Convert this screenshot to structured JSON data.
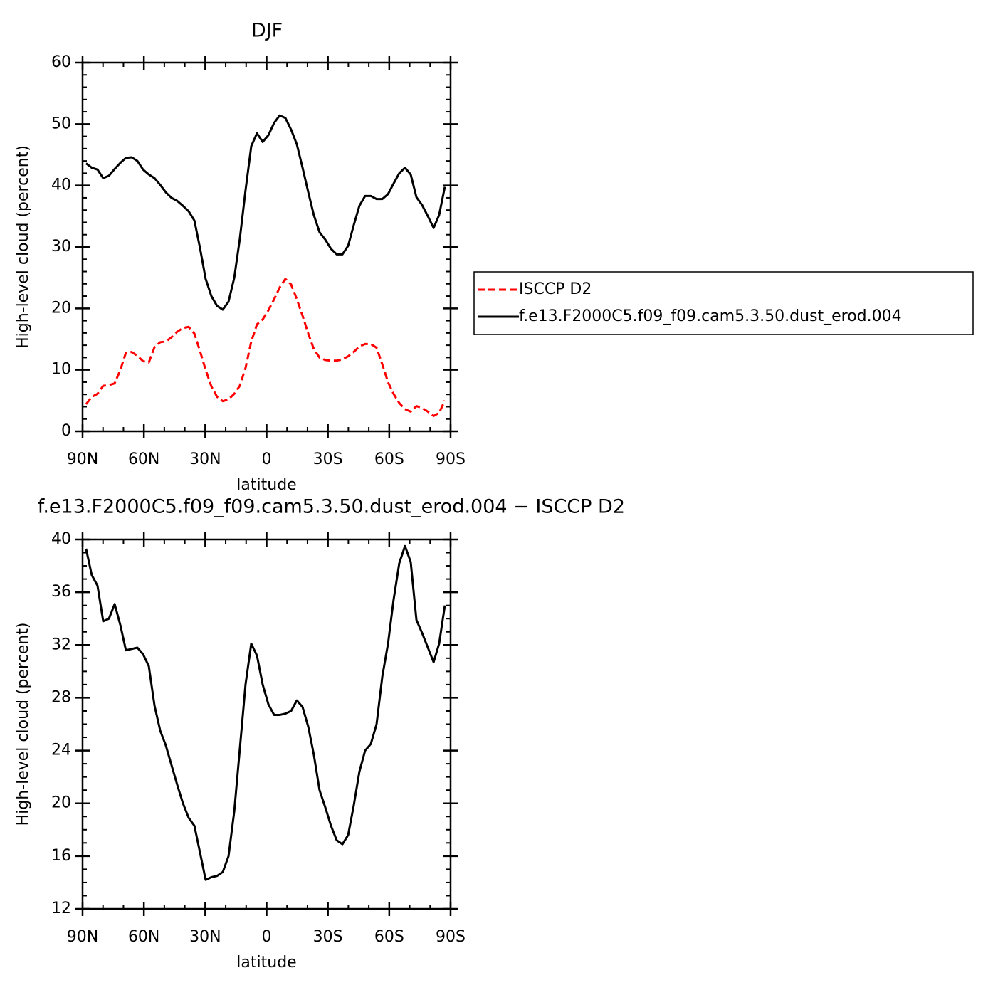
{
  "chart_data": [
    {
      "type": "line",
      "title": "DJF",
      "xlabel": "latitude",
      "ylabel": "High-level cloud (percent)",
      "x": [
        88.3,
        85.5,
        82.7,
        79.9,
        77.1,
        74.3,
        71.5,
        68.8,
        66.0,
        63.2,
        60.4,
        57.6,
        54.8,
        52.0,
        49.3,
        46.5,
        43.7,
        40.9,
        38.1,
        35.3,
        32.6,
        29.8,
        27.0,
        24.2,
        21.4,
        18.6,
        15.8,
        13.1,
        10.3,
        7.5,
        4.7,
        1.9,
        -0.9,
        -3.7,
        -6.4,
        -9.2,
        -12.0,
        -14.8,
        -17.6,
        -20.4,
        -23.1,
        -25.9,
        -28.7,
        -31.5,
        -34.3,
        -37.1,
        -39.9,
        -42.6,
        -45.4,
        -48.2,
        -51.0,
        -53.8,
        -56.6,
        -59.4,
        -62.1,
        -64.9,
        -67.7,
        -70.5,
        -73.3,
        -76.1,
        -78.9,
        -81.7,
        -84.4,
        -87.2
      ],
      "series": [
        {
          "name": "ISCCP D2",
          "color": "#ff0000",
          "style": "dashed",
          "values": [
            4.4,
            5.6,
            6.1,
            7.4,
            7.5,
            7.8,
            10.0,
            12.8,
            12.9,
            12.3,
            11.4,
            11.2,
            13.7,
            14.5,
            14.6,
            15.3,
            16.2,
            16.8,
            17.0,
            15.9,
            13.1,
            10.0,
            7.3,
            5.6,
            4.9,
            5.2,
            6.1,
            7.4,
            10.3,
            14.6,
            17.4,
            18.2,
            19.7,
            21.5,
            23.4,
            24.8,
            23.9,
            21.5,
            18.8,
            15.9,
            13.4,
            12.0,
            11.6,
            11.5,
            11.5,
            11.7,
            12.2,
            12.9,
            13.8,
            14.2,
            14.2,
            13.6,
            10.9,
            8.0,
            6.1,
            4.6,
            3.6,
            3.2,
            4.1,
            3.8,
            3.2,
            2.5,
            3.0,
            5.0
          ]
        },
        {
          "name": "f.e13.F2000C5.f09_f09.cam5.3.50.dust_erod.004",
          "color": "#000000",
          "style": "solid",
          "values": [
            43.6,
            42.9,
            42.6,
            41.2,
            41.6,
            42.7,
            43.7,
            44.5,
            44.6,
            44.0,
            42.6,
            41.8,
            41.2,
            40.1,
            38.9,
            38.0,
            37.5,
            36.7,
            35.8,
            34.3,
            29.9,
            24.8,
            22.0,
            20.4,
            19.8,
            21.1,
            25.0,
            31.3,
            39.2,
            46.4,
            48.5,
            47.1,
            48.2,
            50.2,
            51.4,
            51.0,
            49.1,
            46.7,
            42.9,
            38.9,
            35.2,
            32.4,
            31.2,
            29.7,
            28.8,
            28.8,
            30.2,
            33.5,
            36.7,
            38.3,
            38.3,
            37.8,
            37.8,
            38.6,
            40.3,
            42.0,
            42.9,
            41.8,
            38.1,
            36.8,
            35.0,
            33.1,
            35.2,
            39.8
          ]
        }
      ],
      "xlim": [
        90,
        -90
      ],
      "xticks": [
        {
          "value": 90,
          "label": "90N"
        },
        {
          "value": 60,
          "label": "60N"
        },
        {
          "value": 30,
          "label": "30N"
        },
        0,
        {
          "value": -30,
          "label": "30S"
        },
        {
          "value": -60,
          "label": "60S"
        },
        {
          "value": -90,
          "label": "90S"
        }
      ],
      "ylim": [
        0,
        60
      ],
      "yticks": [
        0,
        10,
        20,
        30,
        40,
        50,
        60
      ],
      "legend": "right"
    },
    {
      "type": "line",
      "title": "f.e13.F2000C5.f09_f09.cam5.3.50.dust_erod.004 − ISCCP D2",
      "xlabel": "latitude",
      "ylabel": "High-level cloud (percent)",
      "x": [
        88.3,
        85.5,
        82.7,
        79.9,
        77.1,
        74.3,
        71.5,
        68.8,
        66.0,
        63.2,
        60.4,
        57.6,
        54.8,
        52.0,
        49.3,
        46.5,
        43.7,
        40.9,
        38.1,
        35.3,
        32.6,
        29.8,
        27.0,
        24.2,
        21.4,
        18.6,
        15.8,
        13.1,
        10.3,
        7.5,
        4.7,
        1.9,
        -0.9,
        -3.7,
        -6.4,
        -9.2,
        -12.0,
        -14.8,
        -17.6,
        -20.4,
        -23.1,
        -25.9,
        -28.7,
        -31.5,
        -34.3,
        -37.1,
        -39.9,
        -42.6,
        -45.4,
        -48.2,
        -51.0,
        -53.8,
        -56.6,
        -59.4,
        -62.1,
        -64.9,
        -67.7,
        -70.5,
        -73.3,
        -76.1,
        -78.9,
        -81.7,
        -84.4,
        -87.2
      ],
      "color": "#000000",
      "values": [
        39.3,
        37.3,
        36.5,
        33.8,
        34.0,
        35.1,
        33.5,
        31.6,
        31.7,
        31.8,
        31.3,
        30.4,
        27.4,
        25.5,
        24.4,
        22.9,
        21.4,
        20.0,
        18.9,
        18.3,
        16.3,
        14.2,
        14.4,
        14.5,
        14.8,
        16.0,
        19.4,
        24.1,
        29.0,
        32.1,
        31.2,
        29.0,
        27.5,
        26.7,
        26.7,
        26.8,
        27.0,
        27.8,
        27.3,
        25.8,
        23.7,
        21.0,
        19.7,
        18.3,
        17.2,
        16.9,
        17.6,
        19.8,
        22.4,
        24.0,
        24.5,
        26.0,
        29.6,
        32.1,
        35.4,
        38.2,
        39.5,
        38.3,
        33.9,
        32.9,
        31.8,
        30.7,
        32.1,
        35.0
      ],
      "xlim": [
        90,
        -90
      ],
      "xticks": [
        {
          "value": 90,
          "label": "90N"
        },
        {
          "value": 60,
          "label": "60N"
        },
        {
          "value": 30,
          "label": "30N"
        },
        0,
        {
          "value": -30,
          "label": "30S"
        },
        {
          "value": -60,
          "label": "60S"
        },
        {
          "value": -90,
          "label": "90S"
        }
      ],
      "ylim": [
        12,
        40
      ],
      "yticks": [
        12,
        16,
        20,
        24,
        28,
        32,
        36,
        40
      ]
    }
  ]
}
